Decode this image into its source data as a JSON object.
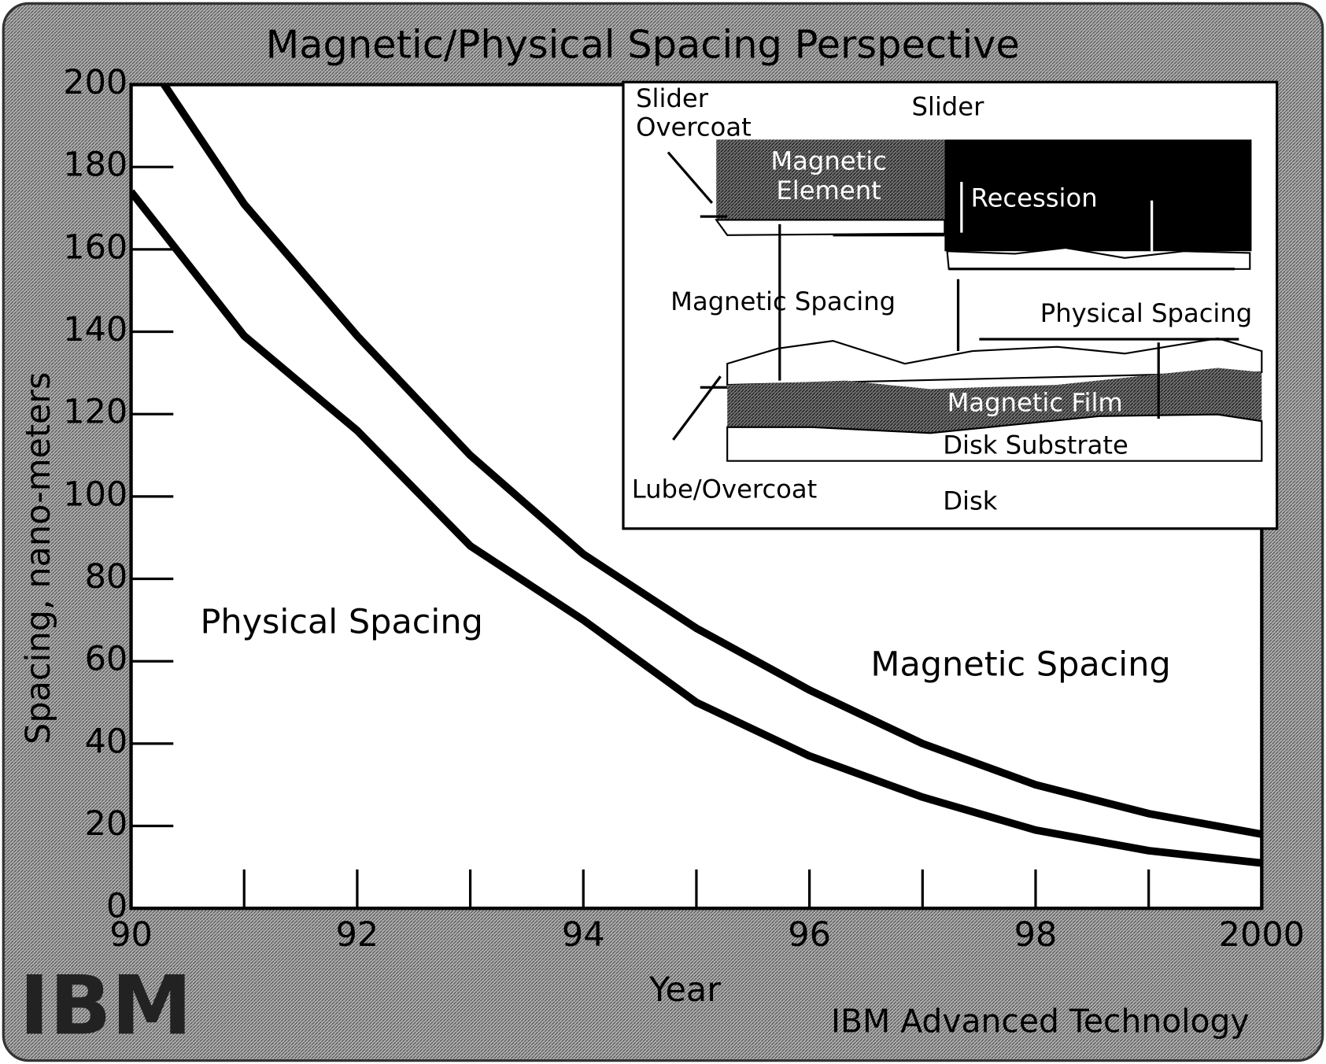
{
  "chart_data": {
    "type": "line",
    "title": "Magnetic/Physical Spacing Perspective",
    "x_label": "Year",
    "y_label": "Spacing, nano-meters",
    "categories": [
      "90",
      null,
      "92",
      null,
      "94",
      null,
      "96",
      null,
      "98",
      null,
      "2000"
    ],
    "series": [
      {
        "name": "Magnetic Spacing",
        "color": "#000000",
        "values": [
          212,
          171,
          139,
          110,
          86,
          68,
          53,
          40,
          30,
          23,
          18
        ]
      },
      {
        "name": "Physical Spacing",
        "color": "#000000",
        "values": [
          174,
          139,
          116,
          88,
          70,
          50,
          37,
          27,
          19,
          14,
          11
        ]
      }
    ],
    "ylim": [
      0,
      200
    ],
    "yticks": [
      0,
      20,
      40,
      60,
      80,
      100,
      120,
      140,
      160,
      180,
      200
    ],
    "inset": {
      "slider_overcoat": [
        "Slider",
        "Overcoat"
      ],
      "slider": "Slider",
      "magnetic_element": [
        "Magnetic",
        "Element"
      ],
      "recession": "Recession",
      "magnetic_spacing": "Magnetic Spacing",
      "physical_spacing": "Physical Spacing",
      "magnetic_film": "Magnetic Film",
      "disk_substrate": "Disk Substrate",
      "lube_overcoat": "Lube/Overcoat",
      "disk": "Disk"
    },
    "footer": {
      "logo": "IBM",
      "credit": "IBM Advanced Technology"
    }
  }
}
